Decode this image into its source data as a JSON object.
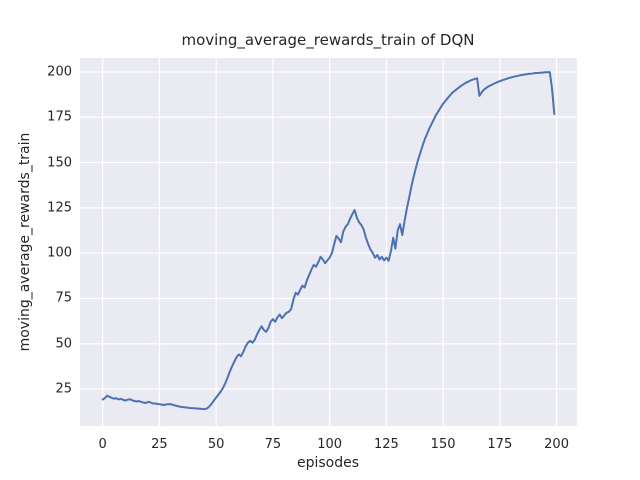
{
  "chart_data": {
    "type": "line",
    "title": "moving_average_rewards_train of DQN",
    "xlabel": "episodes",
    "ylabel": "moving_average_rewards_train",
    "x_ticks": [
      0,
      25,
      50,
      75,
      100,
      125,
      150,
      175,
      200
    ],
    "y_ticks": [
      25,
      50,
      75,
      100,
      125,
      150,
      175,
      200
    ],
    "xlim": [
      -10,
      209
    ],
    "ylim": [
      4.6,
      207.7
    ],
    "grid": true,
    "legend_position": "none",
    "style": {
      "line_color": "#4C72B0",
      "axes_background": "#EAEAF2",
      "grid_color": "#FFFFFF",
      "text_color": "#262626"
    },
    "series": [
      {
        "name": "moving_average_rewards_train",
        "points": [
          [
            0,
            19.2
          ],
          [
            1,
            20.1
          ],
          [
            2,
            21.3
          ],
          [
            3,
            20.7
          ],
          [
            4,
            20.1
          ],
          [
            5,
            19.7
          ],
          [
            6,
            19.9
          ],
          [
            7,
            19.3
          ],
          [
            8,
            19.6
          ],
          [
            9,
            19.0
          ],
          [
            10,
            18.7
          ],
          [
            11,
            19.1
          ],
          [
            12,
            19.4
          ],
          [
            13,
            18.8
          ],
          [
            14,
            18.4
          ],
          [
            15,
            18.1
          ],
          [
            16,
            18.4
          ],
          [
            17,
            17.9
          ],
          [
            18,
            17.5
          ],
          [
            19,
            17.3
          ],
          [
            20,
            17.9
          ],
          [
            21,
            17.6
          ],
          [
            22,
            17.1
          ],
          [
            23,
            17.0
          ],
          [
            24,
            16.8
          ],
          [
            25,
            16.6
          ],
          [
            26,
            16.4
          ],
          [
            27,
            16.2
          ],
          [
            28,
            16.5
          ],
          [
            29,
            16.6
          ],
          [
            30,
            16.7
          ],
          [
            31,
            16.2
          ],
          [
            32,
            15.9
          ],
          [
            33,
            15.6
          ],
          [
            34,
            15.3
          ],
          [
            35,
            15.1
          ],
          [
            36,
            14.9
          ],
          [
            37,
            14.8
          ],
          [
            38,
            14.6
          ],
          [
            39,
            14.5
          ],
          [
            40,
            14.4
          ],
          [
            41,
            14.3
          ],
          [
            42,
            14.2
          ],
          [
            43,
            14.1
          ],
          [
            44,
            14.0
          ],
          [
            45,
            13.9
          ],
          [
            46,
            14.3
          ],
          [
            47,
            15.4
          ],
          [
            48,
            16.9
          ],
          [
            49,
            18.6
          ],
          [
            50,
            20.4
          ],
          [
            51,
            21.9
          ],
          [
            52,
            23.6
          ],
          [
            53,
            25.6
          ],
          [
            54,
            28.1
          ],
          [
            55,
            31.2
          ],
          [
            56,
            34.6
          ],
          [
            57,
            37.6
          ],
          [
            58,
            40.1
          ],
          [
            59,
            42.6
          ],
          [
            60,
            44.1
          ],
          [
            61,
            43.1
          ],
          [
            62,
            45.6
          ],
          [
            63,
            48.6
          ],
          [
            64,
            50.6
          ],
          [
            65,
            51.6
          ],
          [
            66,
            50.6
          ],
          [
            67,
            52.1
          ],
          [
            68,
            55.1
          ],
          [
            69,
            57.6
          ],
          [
            70,
            59.6
          ],
          [
            71,
            57.6
          ],
          [
            72,
            56.6
          ],
          [
            73,
            58.6
          ],
          [
            74,
            62.1
          ],
          [
            75,
            63.6
          ],
          [
            76,
            62.1
          ],
          [
            77,
            64.6
          ],
          [
            78,
            66.1
          ],
          [
            79,
            64.1
          ],
          [
            80,
            65.6
          ],
          [
            81,
            67.1
          ],
          [
            82,
            67.6
          ],
          [
            83,
            69.1
          ],
          [
            84,
            74.1
          ],
          [
            85,
            78.1
          ],
          [
            86,
            77.1
          ],
          [
            87,
            79.6
          ],
          [
            88,
            82.1
          ],
          [
            89,
            81.1
          ],
          [
            90,
            85.0
          ],
          [
            91,
            88.0
          ],
          [
            92,
            91.0
          ],
          [
            93,
            93.5
          ],
          [
            94,
            92.5
          ],
          [
            95,
            95.0
          ],
          [
            96,
            98.0
          ],
          [
            97,
            96.5
          ],
          [
            98,
            94.5
          ],
          [
            99,
            96.0
          ],
          [
            100,
            97.5
          ],
          [
            101,
            100.0
          ],
          [
            102,
            105.0
          ],
          [
            103,
            109.5
          ],
          [
            104,
            108.0
          ],
          [
            105,
            106.0
          ],
          [
            106,
            112.0
          ],
          [
            107,
            114.5
          ],
          [
            108,
            116.0
          ],
          [
            109,
            119.0
          ],
          [
            110,
            121.5
          ],
          [
            111,
            123.8
          ],
          [
            112,
            119.5
          ],
          [
            113,
            117.0
          ],
          [
            114,
            115.5
          ],
          [
            115,
            113.0
          ],
          [
            116,
            108.5
          ],
          [
            117,
            105.0
          ],
          [
            118,
            102.0
          ],
          [
            119,
            100.0
          ],
          [
            120,
            97.5
          ],
          [
            121,
            99.0
          ],
          [
            122,
            96.5
          ],
          [
            123,
            98.0
          ],
          [
            124,
            96.0
          ],
          [
            125,
            97.5
          ],
          [
            126,
            95.8
          ],
          [
            127,
            101.0
          ],
          [
            128,
            108.5
          ],
          [
            129,
            102.5
          ],
          [
            130,
            112.5
          ],
          [
            131,
            116.0
          ],
          [
            132,
            110.0
          ],
          [
            133,
            117.5
          ],
          [
            134,
            124.5
          ],
          [
            135,
            130.5
          ],
          [
            136,
            136.5
          ],
          [
            137,
            142.0
          ],
          [
            138,
            147.0
          ],
          [
            139,
            151.5
          ],
          [
            140,
            155.5
          ],
          [
            141,
            159.5
          ],
          [
            142,
            163.0
          ],
          [
            143,
            166.0
          ],
          [
            144,
            169.0
          ],
          [
            145,
            171.5
          ],
          [
            146,
            174.0
          ],
          [
            147,
            176.5
          ],
          [
            148,
            178.5
          ],
          [
            149,
            180.5
          ],
          [
            150,
            182.5
          ],
          [
            151,
            184.0
          ],
          [
            152,
            185.5
          ],
          [
            153,
            187.0
          ],
          [
            154,
            188.5
          ],
          [
            155,
            189.5
          ],
          [
            156,
            190.5
          ],
          [
            157,
            191.5
          ],
          [
            158,
            192.4
          ],
          [
            159,
            193.2
          ],
          [
            160,
            194.0
          ],
          [
            161,
            194.6
          ],
          [
            162,
            195.2
          ],
          [
            163,
            195.7
          ],
          [
            164,
            196.1
          ],
          [
            165,
            196.5
          ],
          [
            166,
            186.8
          ],
          [
            167,
            188.8
          ],
          [
            168,
            190.2
          ],
          [
            169,
            191.2
          ],
          [
            170,
            192.0
          ],
          [
            171,
            192.7
          ],
          [
            172,
            193.3
          ],
          [
            173,
            193.9
          ],
          [
            174,
            194.4
          ],
          [
            175,
            194.9
          ],
          [
            176,
            195.4
          ],
          [
            177,
            195.8
          ],
          [
            178,
            196.2
          ],
          [
            179,
            196.6
          ],
          [
            180,
            197.0
          ],
          [
            181,
            197.3
          ],
          [
            182,
            197.6
          ],
          [
            183,
            197.9
          ],
          [
            184,
            198.2
          ],
          [
            185,
            198.4
          ],
          [
            186,
            198.6
          ],
          [
            187,
            198.8
          ],
          [
            188,
            199.0
          ],
          [
            189,
            199.1
          ],
          [
            190,
            199.3
          ],
          [
            191,
            199.4
          ],
          [
            192,
            199.5
          ],
          [
            193,
            199.6
          ],
          [
            194,
            199.7
          ],
          [
            195,
            199.8
          ],
          [
            196,
            199.8
          ],
          [
            197,
            199.9
          ],
          [
            198,
            191.0
          ],
          [
            199,
            176.8
          ]
        ]
      }
    ]
  }
}
